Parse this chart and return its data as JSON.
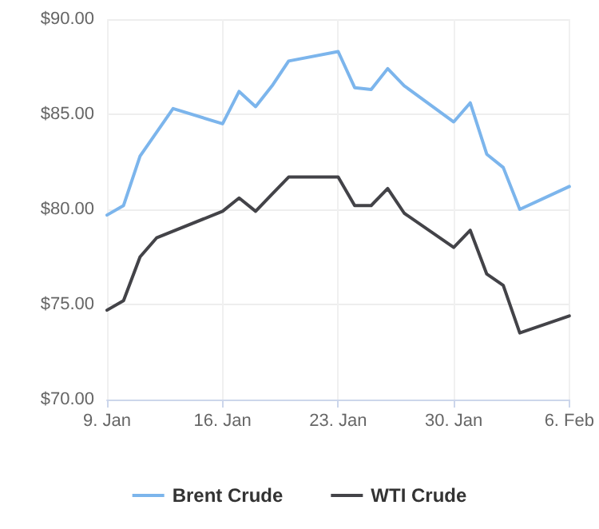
{
  "chart_data": {
    "type": "line",
    "xlim": [
      "--01-09",
      "--02-06"
    ],
    "xticks": [
      {
        "value": "--01-09",
        "label": "9. Jan"
      },
      {
        "value": "--01-16",
        "label": "16. Jan"
      },
      {
        "value": "--01-23",
        "label": "23. Jan"
      },
      {
        "value": "--01-30",
        "label": "30. Jan"
      },
      {
        "value": "--02-06",
        "label": "6. Feb"
      }
    ],
    "ylim": [
      70,
      90
    ],
    "yticks": [
      {
        "value": 70,
        "label": "$70.00"
      },
      {
        "value": 75,
        "label": "$75.00"
      },
      {
        "value": 80,
        "label": "$80.00"
      },
      {
        "value": 85,
        "label": "$85.00"
      },
      {
        "value": 90,
        "label": "$90.00"
      }
    ],
    "series": [
      {
        "name": "Brent Crude",
        "color": "#7cb5ec",
        "x": [
          "--01-09",
          "--01-10",
          "--01-11",
          "--01-13",
          "--01-16",
          "--01-17",
          "--01-18",
          "--01-19",
          "--01-20",
          "--01-23",
          "--01-24",
          "--01-25",
          "--01-26",
          "--01-27",
          "--01-30",
          "--01-31",
          "--02-01",
          "--02-02",
          "--02-03",
          "--02-06"
        ],
        "values": [
          79.7,
          80.2,
          82.8,
          85.3,
          84.5,
          86.2,
          85.4,
          86.5,
          87.8,
          88.3,
          86.4,
          86.3,
          87.4,
          86.5,
          84.6,
          85.6,
          82.9,
          82.2,
          80.0,
          81.2
        ]
      },
      {
        "name": "WTI Crude",
        "color": "#434348",
        "x": [
          "--01-09",
          "--01-10",
          "--01-11",
          "--01-12",
          "--01-16",
          "--01-17",
          "--01-18",
          "--01-19",
          "--01-20",
          "--01-23",
          "--01-24",
          "--01-25",
          "--01-26",
          "--01-27",
          "--01-30",
          "--01-31",
          "--02-01",
          "--02-02",
          "--02-03",
          "--02-06"
        ],
        "values": [
          74.7,
          75.2,
          77.5,
          78.5,
          79.9,
          80.6,
          79.9,
          80.8,
          81.7,
          81.7,
          80.2,
          80.2,
          81.1,
          79.8,
          78.0,
          78.9,
          76.6,
          76.0,
          73.5,
          74.4
        ]
      }
    ],
    "grid": true,
    "legend": "bottom",
    "marker": "none",
    "line_style": "solid"
  }
}
